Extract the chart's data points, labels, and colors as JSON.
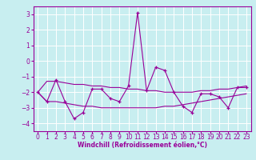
{
  "xlabel": "Windchill (Refroidissement éolien,°C)",
  "bg_color": "#c8eef0",
  "grid_color": "#ffffff",
  "line_color": "#990099",
  "x_values": [
    0,
    1,
    2,
    3,
    4,
    5,
    6,
    7,
    8,
    9,
    10,
    11,
    12,
    13,
    14,
    15,
    16,
    17,
    18,
    19,
    20,
    21,
    22,
    23
  ],
  "y_main": [
    -2.0,
    -2.6,
    -1.2,
    -2.6,
    -3.7,
    -3.3,
    -1.8,
    -1.8,
    -2.4,
    -2.6,
    -1.6,
    3.1,
    -1.9,
    -0.4,
    -0.6,
    -2.0,
    -2.9,
    -3.3,
    -2.1,
    -2.1,
    -2.3,
    -3.0,
    -1.7,
    -1.7
  ],
  "y_upper": [
    -2.0,
    -1.3,
    -1.3,
    -1.4,
    -1.5,
    -1.5,
    -1.6,
    -1.6,
    -1.7,
    -1.7,
    -1.8,
    -1.8,
    -1.9,
    -1.9,
    -2.0,
    -2.0,
    -2.0,
    -2.0,
    -1.9,
    -1.9,
    -1.8,
    -1.8,
    -1.7,
    -1.6
  ],
  "y_lower": [
    -2.0,
    -2.6,
    -2.6,
    -2.7,
    -2.8,
    -2.9,
    -2.9,
    -3.0,
    -3.0,
    -3.0,
    -3.0,
    -3.0,
    -3.0,
    -3.0,
    -2.9,
    -2.9,
    -2.8,
    -2.7,
    -2.6,
    -2.5,
    -2.4,
    -2.3,
    -2.2,
    -2.1
  ],
  "ylim": [
    -4.5,
    3.5
  ],
  "xlim": [
    -0.5,
    23.5
  ],
  "yticks": [
    -4,
    -3,
    -2,
    -1,
    0,
    1,
    2,
    3
  ],
  "xticks": [
    0,
    1,
    2,
    3,
    4,
    5,
    6,
    7,
    8,
    9,
    10,
    11,
    12,
    13,
    14,
    15,
    16,
    17,
    18,
    19,
    20,
    21,
    22,
    23
  ],
  "xtick_labels": [
    "0",
    "1",
    "2",
    "3",
    "4",
    "5",
    "6",
    "7",
    "8",
    "9",
    "10",
    "11",
    "12",
    "13",
    "14",
    "15",
    "16",
    "17",
    "18",
    "19",
    "20",
    "21",
    "22",
    "23"
  ],
  "tick_fontsize": 5.5,
  "xlabel_fontsize": 5.5,
  "marker_size": 3.0,
  "linewidth": 0.8
}
